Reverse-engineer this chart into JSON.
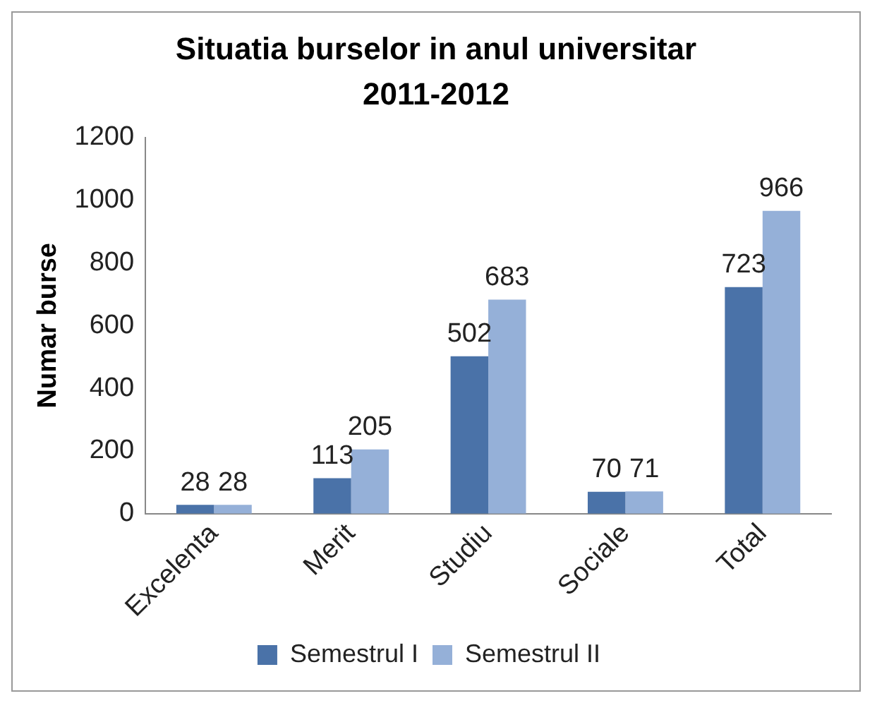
{
  "chart_data": {
    "type": "bar",
    "title": "Situatia burselor in anul universitar 2011-2012",
    "ylabel": "Numar burse",
    "categories": [
      "Excelenta",
      "Merit",
      "Studiu",
      "Sociale",
      "Total"
    ],
    "series": [
      {
        "name": "Semestrul I",
        "color": "#4a72a8",
        "values": [
          28,
          113,
          502,
          70,
          723
        ]
      },
      {
        "name": "Semestrul II",
        "color": "#95b0d8",
        "values": [
          28,
          205,
          683,
          71,
          966
        ]
      }
    ],
    "ylim": [
      0,
      1200
    ],
    "yticks": [
      0,
      200,
      400,
      600,
      800,
      1000,
      1200
    ],
    "grid": false,
    "legend": "bottom",
    "data_labels": true
  }
}
